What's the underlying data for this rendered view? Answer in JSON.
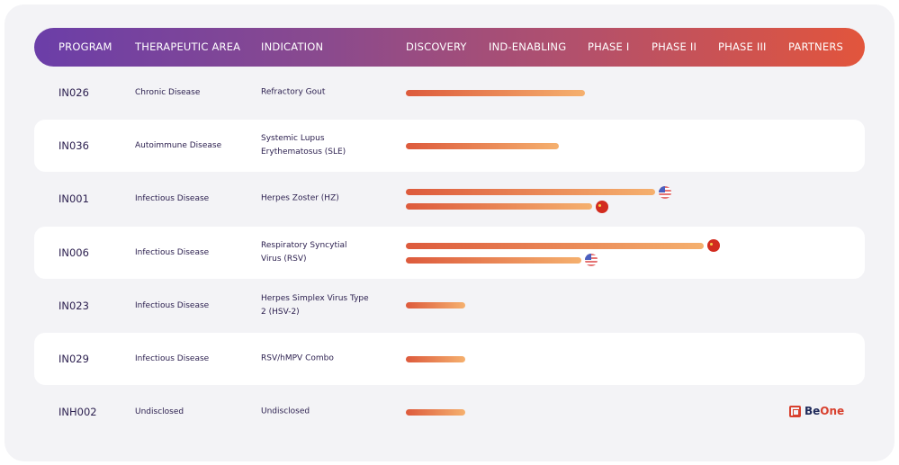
{
  "header": {
    "columns": [
      "PROGRAM",
      "THERAPEUTIC AREA",
      "INDICATION",
      "DISCOVERY",
      "IND-ENABLING",
      "PHASE I",
      "PHASE II",
      "PHASE III",
      "PARTNERS"
    ]
  },
  "rows": [
    {
      "program": "IN026",
      "area": "Chronic Disease",
      "indication": "Refractory Gout",
      "bars": [
        {
          "progress": 0.48
        }
      ]
    },
    {
      "program": "IN036",
      "area": "Autoimmune Disease",
      "indication": "Systemic Lupus Erythematosus (SLE)",
      "bars": [
        {
          "progress": 0.41
        }
      ]
    },
    {
      "program": "IN001",
      "area": "Infectious Disease",
      "indication": "Herpes Zoster (HZ)",
      "bars": [
        {
          "progress": 0.67,
          "flag": "us"
        },
        {
          "progress": 0.5,
          "flag": "cn"
        }
      ]
    },
    {
      "program": "IN006",
      "area": "Infectious Disease",
      "indication": "Respiratory Syncytial Virus (RSV)",
      "bars": [
        {
          "progress": 0.8,
          "flag": "cn"
        },
        {
          "progress": 0.47,
          "flag": "us"
        }
      ]
    },
    {
      "program": "IN023",
      "area": "Infectious Disease",
      "indication": "Herpes Simplex Virus Type 2 (HSV-2)",
      "bars": [
        {
          "progress": 0.16
        }
      ]
    },
    {
      "program": "IN029",
      "area": "Infectious Disease",
      "indication": "RSV/hMPV Combo",
      "bars": [
        {
          "progress": 0.16
        }
      ]
    },
    {
      "program": "INH002",
      "area": "Undisclosed",
      "indication": "Undisclosed",
      "bars": [
        {
          "progress": 0.16
        }
      ],
      "partner": {
        "be": "Be",
        "one": "One"
      }
    }
  ],
  "colors": {
    "bar_start": "#dd5a3c",
    "bar_end": "#f5b06e",
    "logo_dark": "#1f2a5a",
    "logo_red": "#d8402e"
  }
}
